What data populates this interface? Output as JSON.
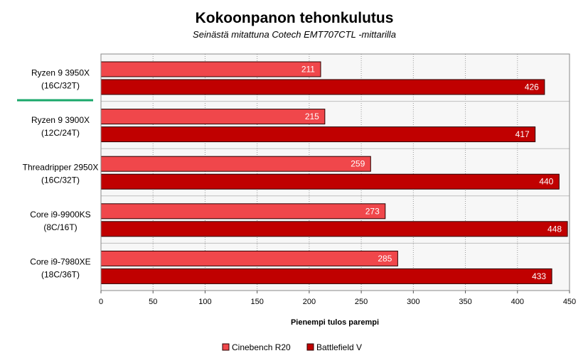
{
  "chart_data": {
    "type": "bar",
    "orientation": "horizontal",
    "title": "Kokoonpanon tehonkulutus",
    "subtitle": "Seinästä mitattuna Cotech EMT707CTL -mittarilla",
    "xlabel": "Pienempi tulos parempi",
    "categories": [
      [
        "Ryzen 9 3950X",
        "(16C/32T)"
      ],
      [
        "Ryzen 9 3900X",
        "(12C/24T)"
      ],
      [
        "Threadripper 2950X",
        "(16C/32T)"
      ],
      [
        "Core i9-9900KS",
        "(8C/16T)"
      ],
      [
        "Core i9-7980XE",
        "(18C/36T)"
      ]
    ],
    "highlighted_category": 0,
    "series": [
      {
        "name": "Cinebench R20",
        "color": "#F0474B",
        "values": [
          211,
          215,
          259,
          273,
          285
        ]
      },
      {
        "name": "Battlefield V",
        "color": "#C00000",
        "values": [
          426,
          417,
          440,
          448,
          433
        ]
      }
    ],
    "xlim": [
      0,
      450
    ],
    "xticks": [
      0,
      50,
      100,
      150,
      200,
      250,
      300,
      350,
      400,
      450
    ],
    "grid": true,
    "legend_position": "bottom",
    "highlight_color": "#1AA86A"
  }
}
